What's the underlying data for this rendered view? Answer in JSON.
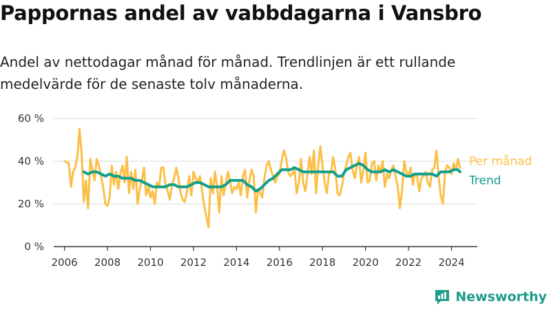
{
  "title": "Pappornas andel av vabbdagarna i Vansbro",
  "subtitle": "Andel av nettodagar månad för månad. Trendlinjen är ett rullande medelvärde för de senaste tolv månaderna.",
  "brand": "Newsworthy",
  "colors": {
    "monthly": "#fbbf45",
    "trend": "#12a08a",
    "grid": "#d9d9d9",
    "axis": "#333333",
    "brand": "#1f9a8a"
  },
  "chart_data": {
    "type": "line",
    "x_unit": "year",
    "y_unit": "%",
    "xlim": [
      2005.5,
      2025.2
    ],
    "ylim": [
      0,
      60
    ],
    "x_ticks": [
      "2006",
      "2008",
      "2010",
      "2012",
      "2014",
      "2016",
      "2018",
      "2020",
      "2022",
      "2024"
    ],
    "y_ticks": [
      "0 %",
      "20 %",
      "40 %",
      "60 %"
    ],
    "y_tick_values": [
      0,
      20,
      40,
      60
    ],
    "grid": "horizontal",
    "legend_placement": "right, at line ends",
    "series": [
      {
        "name": "Per månad",
        "color": "#fbbf45",
        "points": [
          [
            2006.0,
            40
          ],
          [
            2006.2,
            39
          ],
          [
            2006.3,
            28
          ],
          [
            2006.4,
            35
          ],
          [
            2006.5,
            37
          ],
          [
            2006.6,
            42
          ],
          [
            2006.7,
            55
          ],
          [
            2006.8,
            43
          ],
          [
            2006.9,
            21
          ],
          [
            2007.0,
            31
          ],
          [
            2007.1,
            18
          ],
          [
            2007.2,
            41
          ],
          [
            2007.3,
            36
          ],
          [
            2007.4,
            31
          ],
          [
            2007.5,
            41
          ],
          [
            2007.6,
            38
          ],
          [
            2007.7,
            33
          ],
          [
            2007.8,
            28
          ],
          [
            2007.9,
            20
          ],
          [
            2008.0,
            19
          ],
          [
            2008.1,
            23
          ],
          [
            2008.2,
            38
          ],
          [
            2008.3,
            29
          ],
          [
            2008.4,
            35
          ],
          [
            2008.5,
            27
          ],
          [
            2008.6,
            34
          ],
          [
            2008.7,
            38
          ],
          [
            2008.8,
            30
          ],
          [
            2008.9,
            42
          ],
          [
            2009.0,
            25
          ],
          [
            2009.1,
            35
          ],
          [
            2009.2,
            27
          ],
          [
            2009.3,
            36
          ],
          [
            2009.4,
            20
          ],
          [
            2009.5,
            27
          ],
          [
            2009.6,
            31
          ],
          [
            2009.7,
            37
          ],
          [
            2009.8,
            24
          ],
          [
            2009.9,
            28
          ],
          [
            2010.0,
            23
          ],
          [
            2010.1,
            26
          ],
          [
            2010.2,
            20
          ],
          [
            2010.3,
            30
          ],
          [
            2010.4,
            28
          ],
          [
            2010.5,
            37
          ],
          [
            2010.6,
            37
          ],
          [
            2010.7,
            29
          ],
          [
            2010.8,
            26
          ],
          [
            2010.9,
            22
          ],
          [
            2011.0,
            29
          ],
          [
            2011.1,
            32
          ],
          [
            2011.2,
            37
          ],
          [
            2011.3,
            32
          ],
          [
            2011.4,
            25
          ],
          [
            2011.5,
            22
          ],
          [
            2011.6,
            21
          ],
          [
            2011.7,
            26
          ],
          [
            2011.8,
            33
          ],
          [
            2011.9,
            24
          ],
          [
            2012.0,
            35
          ],
          [
            2012.1,
            32
          ],
          [
            2012.2,
            30
          ],
          [
            2012.3,
            33
          ],
          [
            2012.4,
            26
          ],
          [
            2012.5,
            19
          ],
          [
            2012.6,
            14
          ],
          [
            2012.7,
            9
          ],
          [
            2012.8,
            32
          ],
          [
            2012.9,
            25
          ],
          [
            2013.0,
            35
          ],
          [
            2013.1,
            28
          ],
          [
            2013.2,
            16
          ],
          [
            2013.3,
            33
          ],
          [
            2013.4,
            24
          ],
          [
            2013.5,
            29
          ],
          [
            2013.6,
            35
          ],
          [
            2013.7,
            31
          ],
          [
            2013.8,
            25
          ],
          [
            2013.9,
            28
          ],
          [
            2014.0,
            27
          ],
          [
            2014.1,
            30
          ],
          [
            2014.2,
            24
          ],
          [
            2014.3,
            33
          ],
          [
            2014.4,
            36
          ],
          [
            2014.5,
            23
          ],
          [
            2014.6,
            31
          ],
          [
            2014.7,
            36
          ],
          [
            2014.8,
            33
          ],
          [
            2014.9,
            16
          ],
          [
            2015.0,
            27
          ],
          [
            2015.1,
            25
          ],
          [
            2015.2,
            23
          ],
          [
            2015.3,
            32
          ],
          [
            2015.4,
            38
          ],
          [
            2015.5,
            40
          ],
          [
            2015.6,
            36
          ],
          [
            2015.7,
            33
          ],
          [
            2015.8,
            30
          ],
          [
            2015.9,
            33
          ],
          [
            2016.0,
            34
          ],
          [
            2016.1,
            40
          ],
          [
            2016.2,
            45
          ],
          [
            2016.3,
            42
          ],
          [
            2016.4,
            35
          ],
          [
            2016.5,
            33
          ],
          [
            2016.6,
            34
          ],
          [
            2016.7,
            36
          ],
          [
            2016.8,
            25
          ],
          [
            2016.9,
            30
          ],
          [
            2017.0,
            41
          ],
          [
            2017.1,
            30
          ],
          [
            2017.2,
            26
          ],
          [
            2017.3,
            34
          ],
          [
            2017.4,
            42
          ],
          [
            2017.5,
            34
          ],
          [
            2017.6,
            45
          ],
          [
            2017.7,
            25
          ],
          [
            2017.8,
            38
          ],
          [
            2017.9,
            47
          ],
          [
            2018.0,
            38
          ],
          [
            2018.1,
            30
          ],
          [
            2018.2,
            25
          ],
          [
            2018.3,
            34
          ],
          [
            2018.4,
            35
          ],
          [
            2018.5,
            42
          ],
          [
            2018.6,
            36
          ],
          [
            2018.7,
            25
          ],
          [
            2018.8,
            24
          ],
          [
            2018.9,
            28
          ],
          [
            2019.0,
            34
          ],
          [
            2019.1,
            38
          ],
          [
            2019.2,
            42
          ],
          [
            2019.3,
            44
          ],
          [
            2019.4,
            36
          ],
          [
            2019.5,
            32
          ],
          [
            2019.6,
            38
          ],
          [
            2019.7,
            42
          ],
          [
            2019.8,
            30
          ],
          [
            2019.9,
            36
          ],
          [
            2020.0,
            44
          ],
          [
            2020.1,
            30
          ],
          [
            2020.2,
            31
          ],
          [
            2020.3,
            39
          ],
          [
            2020.4,
            40
          ],
          [
            2020.5,
            31
          ],
          [
            2020.6,
            38
          ],
          [
            2020.7,
            35
          ],
          [
            2020.8,
            40
          ],
          [
            2020.9,
            28
          ],
          [
            2021.0,
            34
          ],
          [
            2021.1,
            32
          ],
          [
            2021.2,
            36
          ],
          [
            2021.3,
            38
          ],
          [
            2021.4,
            33
          ],
          [
            2021.5,
            28
          ],
          [
            2021.6,
            18
          ],
          [
            2021.7,
            26
          ],
          [
            2021.8,
            40
          ],
          [
            2021.9,
            35
          ],
          [
            2022.0,
            33
          ],
          [
            2022.1,
            37
          ],
          [
            2022.2,
            29
          ],
          [
            2022.3,
            34
          ],
          [
            2022.4,
            33
          ],
          [
            2022.5,
            26
          ],
          [
            2022.6,
            32
          ],
          [
            2022.7,
            33
          ],
          [
            2022.8,
            35
          ],
          [
            2022.9,
            30
          ],
          [
            2023.0,
            28
          ],
          [
            2023.1,
            36
          ],
          [
            2023.2,
            37
          ],
          [
            2023.3,
            45
          ],
          [
            2023.4,
            33
          ],
          [
            2023.5,
            24
          ],
          [
            2023.6,
            20
          ],
          [
            2023.7,
            35
          ],
          [
            2023.8,
            38
          ],
          [
            2023.9,
            37
          ],
          [
            2024.0,
            34
          ],
          [
            2024.1,
            39
          ],
          [
            2024.2,
            36
          ],
          [
            2024.3,
            41
          ],
          [
            2024.4,
            37
          ]
        ]
      },
      {
        "name": "Trend",
        "color": "#12a08a",
        "points": [
          [
            2006.9,
            35
          ],
          [
            2007.1,
            34
          ],
          [
            2007.3,
            35
          ],
          [
            2007.5,
            35
          ],
          [
            2007.7,
            34
          ],
          [
            2007.9,
            33
          ],
          [
            2008.1,
            34
          ],
          [
            2008.3,
            33
          ],
          [
            2008.5,
            33
          ],
          [
            2008.7,
            32
          ],
          [
            2008.9,
            32
          ],
          [
            2009.1,
            32
          ],
          [
            2009.3,
            31
          ],
          [
            2009.5,
            31
          ],
          [
            2009.7,
            30
          ],
          [
            2009.9,
            29
          ],
          [
            2010.1,
            28
          ],
          [
            2010.3,
            28
          ],
          [
            2010.5,
            28
          ],
          [
            2010.7,
            28
          ],
          [
            2010.9,
            29
          ],
          [
            2011.1,
            29
          ],
          [
            2011.3,
            28
          ],
          [
            2011.5,
            28
          ],
          [
            2011.7,
            28
          ],
          [
            2011.9,
            29
          ],
          [
            2012.1,
            30
          ],
          [
            2012.3,
            30
          ],
          [
            2012.5,
            29
          ],
          [
            2012.7,
            28
          ],
          [
            2012.9,
            28
          ],
          [
            2013.1,
            28
          ],
          [
            2013.3,
            28
          ],
          [
            2013.5,
            29
          ],
          [
            2013.7,
            31
          ],
          [
            2013.9,
            31
          ],
          [
            2014.1,
            31
          ],
          [
            2014.3,
            31
          ],
          [
            2014.5,
            29
          ],
          [
            2014.7,
            28
          ],
          [
            2014.9,
            26
          ],
          [
            2015.1,
            27
          ],
          [
            2015.3,
            29
          ],
          [
            2015.5,
            31
          ],
          [
            2015.7,
            32
          ],
          [
            2015.9,
            34
          ],
          [
            2016.1,
            36
          ],
          [
            2016.3,
            36
          ],
          [
            2016.5,
            36
          ],
          [
            2016.7,
            37
          ],
          [
            2016.9,
            36
          ],
          [
            2017.1,
            35
          ],
          [
            2017.3,
            35
          ],
          [
            2017.5,
            35
          ],
          [
            2017.7,
            35
          ],
          [
            2017.9,
            35
          ],
          [
            2018.1,
            35
          ],
          [
            2018.3,
            35
          ],
          [
            2018.5,
            35
          ],
          [
            2018.7,
            33
          ],
          [
            2018.9,
            33
          ],
          [
            2019.1,
            36
          ],
          [
            2019.3,
            37
          ],
          [
            2019.5,
            38
          ],
          [
            2019.7,
            39
          ],
          [
            2019.9,
            38
          ],
          [
            2020.1,
            36
          ],
          [
            2020.3,
            35
          ],
          [
            2020.5,
            35
          ],
          [
            2020.7,
            35
          ],
          [
            2020.9,
            36
          ],
          [
            2021.1,
            35
          ],
          [
            2021.3,
            36
          ],
          [
            2021.5,
            35
          ],
          [
            2021.7,
            34
          ],
          [
            2021.9,
            33
          ],
          [
            2022.1,
            33
          ],
          [
            2022.3,
            34
          ],
          [
            2022.5,
            34
          ],
          [
            2022.7,
            34
          ],
          [
            2022.9,
            34
          ],
          [
            2023.1,
            34
          ],
          [
            2023.3,
            33
          ],
          [
            2023.5,
            35
          ],
          [
            2023.7,
            35
          ],
          [
            2023.9,
            35
          ],
          [
            2024.1,
            36
          ],
          [
            2024.3,
            36
          ],
          [
            2024.4,
            35
          ]
        ]
      }
    ]
  }
}
